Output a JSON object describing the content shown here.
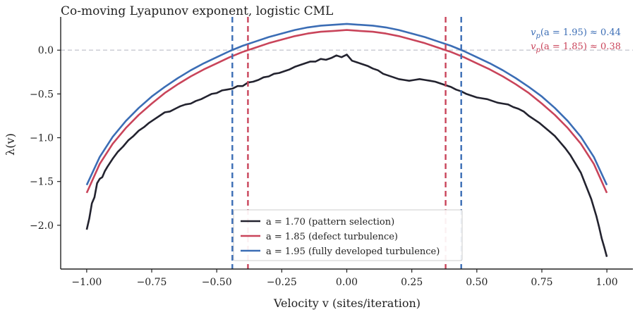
{
  "chart_data": {
    "type": "line",
    "title": "Co-moving Lyapunov exponent, logistic CML",
    "xlabel": "Velocity v (sites/iteration)",
    "ylabel": "λ(v)",
    "xlim": [
      -1.1,
      1.1
    ],
    "ylim": [
      -2.5,
      0.38
    ],
    "xticks": [
      -1.0,
      -0.75,
      -0.5,
      -0.25,
      0.0,
      0.25,
      0.5,
      0.75,
      1.0
    ],
    "xtick_labels": [
      "−1.00",
      "−0.75",
      "−0.50",
      "−0.25",
      "0.00",
      "0.25",
      "0.50",
      "0.75",
      "1.00"
    ],
    "yticks": [
      -2.0,
      -1.5,
      -1.0,
      -0.5,
      0.0
    ],
    "ytick_labels": [
      "−2.0",
      "−1.5",
      "−1.0",
      "−0.5",
      "0.0"
    ],
    "grid": false,
    "legend_position": "lower center",
    "reference_line": {
      "y": 0.0,
      "style": "dashed",
      "color": "#c7c9d1"
    },
    "vertical_markers": [
      {
        "x": -0.44,
        "color": "#3b6db5"
      },
      {
        "x": 0.44,
        "color": "#3b6db5"
      },
      {
        "x": -0.38,
        "color": "#c9445a"
      },
      {
        "x": 0.38,
        "color": "#c9445a"
      }
    ],
    "annotations": [
      {
        "text_main": "v",
        "text_sub": "p",
        "text_rest": "(a = 1.95) ≈ 0.44",
        "color": "#3b6db5"
      },
      {
        "text_main": "v",
        "text_sub": "p",
        "text_rest": "(a = 1.85) ≈ 0.38",
        "color": "#c9445a"
      }
    ],
    "series": [
      {
        "name": "a = 1.70 (pattern selection)",
        "color": "#23232f",
        "x": [
          -1.0,
          -0.99,
          -0.98,
          -0.97,
          -0.96,
          -0.95,
          -0.94,
          -0.93,
          -0.92,
          -0.9,
          -0.88,
          -0.86,
          -0.84,
          -0.82,
          -0.8,
          -0.78,
          -0.76,
          -0.74,
          -0.72,
          -0.7,
          -0.68,
          -0.66,
          -0.64,
          -0.62,
          -0.6,
          -0.58,
          -0.56,
          -0.54,
          -0.52,
          -0.5,
          -0.48,
          -0.46,
          -0.44,
          -0.42,
          -0.4,
          -0.38,
          -0.36,
          -0.34,
          -0.32,
          -0.3,
          -0.28,
          -0.26,
          -0.24,
          -0.22,
          -0.2,
          -0.18,
          -0.16,
          -0.14,
          -0.12,
          -0.1,
          -0.08,
          -0.06,
          -0.04,
          -0.02,
          0.0,
          0.02,
          0.04,
          0.06,
          0.08,
          0.1,
          0.12,
          0.14,
          0.16,
          0.18,
          0.2,
          0.22,
          0.24,
          0.26,
          0.28,
          0.3,
          0.32,
          0.34,
          0.36,
          0.38,
          0.4,
          0.42,
          0.44,
          0.46,
          0.48,
          0.5,
          0.52,
          0.54,
          0.56,
          0.58,
          0.6,
          0.62,
          0.64,
          0.66,
          0.68,
          0.7,
          0.72,
          0.74,
          0.76,
          0.78,
          0.8,
          0.82,
          0.84,
          0.86,
          0.88,
          0.9,
          0.92,
          0.94,
          0.96,
          0.97,
          0.98,
          0.99,
          1.0
        ],
        "y": [
          -2.05,
          -1.92,
          -1.75,
          -1.68,
          -1.52,
          -1.47,
          -1.45,
          -1.38,
          -1.33,
          -1.24,
          -1.16,
          -1.1,
          -1.03,
          -0.98,
          -0.92,
          -0.88,
          -0.83,
          -0.79,
          -0.75,
          -0.71,
          -0.7,
          -0.67,
          -0.64,
          -0.62,
          -0.61,
          -0.58,
          -0.56,
          -0.53,
          -0.5,
          -0.49,
          -0.46,
          -0.45,
          -0.44,
          -0.41,
          -0.41,
          -0.37,
          -0.36,
          -0.34,
          -0.31,
          -0.3,
          -0.27,
          -0.26,
          -0.24,
          -0.22,
          -0.19,
          -0.17,
          -0.15,
          -0.13,
          -0.13,
          -0.1,
          -0.11,
          -0.09,
          -0.06,
          -0.08,
          -0.05,
          -0.12,
          -0.14,
          -0.16,
          -0.18,
          -0.21,
          -0.23,
          -0.27,
          -0.29,
          -0.31,
          -0.33,
          -0.34,
          -0.35,
          -0.34,
          -0.33,
          -0.34,
          -0.35,
          -0.36,
          -0.38,
          -0.4,
          -0.42,
          -0.45,
          -0.47,
          -0.5,
          -0.52,
          -0.54,
          -0.55,
          -0.56,
          -0.58,
          -0.6,
          -0.61,
          -0.62,
          -0.65,
          -0.67,
          -0.7,
          -0.75,
          -0.79,
          -0.83,
          -0.88,
          -0.93,
          -0.98,
          -1.05,
          -1.12,
          -1.2,
          -1.3,
          -1.4,
          -1.55,
          -1.7,
          -1.9,
          -2.02,
          -2.15,
          -2.25,
          -2.36
        ]
      },
      {
        "name": "a = 1.85 (defect turbulence)",
        "color": "#c9445a",
        "x": [
          -1.0,
          -0.95,
          -0.9,
          -0.85,
          -0.8,
          -0.75,
          -0.7,
          -0.65,
          -0.6,
          -0.55,
          -0.5,
          -0.45,
          -0.4,
          -0.35,
          -0.3,
          -0.25,
          -0.2,
          -0.15,
          -0.1,
          -0.05,
          0.0,
          0.05,
          0.1,
          0.15,
          0.2,
          0.25,
          0.3,
          0.35,
          0.4,
          0.45,
          0.5,
          0.55,
          0.6,
          0.65,
          0.7,
          0.75,
          0.8,
          0.85,
          0.9,
          0.95,
          1.0
        ],
        "y": [
          -1.63,
          -1.3,
          -1.07,
          -0.89,
          -0.74,
          -0.61,
          -0.49,
          -0.39,
          -0.3,
          -0.22,
          -0.15,
          -0.08,
          -0.02,
          0.03,
          0.08,
          0.12,
          0.16,
          0.19,
          0.21,
          0.22,
          0.23,
          0.22,
          0.21,
          0.19,
          0.16,
          0.12,
          0.08,
          0.03,
          -0.02,
          -0.08,
          -0.15,
          -0.22,
          -0.3,
          -0.39,
          -0.49,
          -0.61,
          -0.74,
          -0.89,
          -1.07,
          -1.3,
          -1.63
        ]
      },
      {
        "name": "a = 1.95 (fully developed turbulence)",
        "color": "#3b6db5",
        "x": [
          -1.0,
          -0.95,
          -0.9,
          -0.85,
          -0.8,
          -0.75,
          -0.7,
          -0.65,
          -0.6,
          -0.55,
          -0.5,
          -0.45,
          -0.4,
          -0.35,
          -0.3,
          -0.25,
          -0.2,
          -0.15,
          -0.1,
          -0.05,
          0.0,
          0.05,
          0.1,
          0.15,
          0.2,
          0.25,
          0.3,
          0.35,
          0.4,
          0.45,
          0.5,
          0.55,
          0.6,
          0.65,
          0.7,
          0.75,
          0.8,
          0.85,
          0.9,
          0.95,
          1.0
        ],
        "y": [
          -1.54,
          -1.22,
          -0.99,
          -0.81,
          -0.66,
          -0.53,
          -0.42,
          -0.32,
          -0.23,
          -0.15,
          -0.08,
          -0.01,
          0.05,
          0.1,
          0.15,
          0.19,
          0.23,
          0.26,
          0.28,
          0.29,
          0.3,
          0.29,
          0.28,
          0.26,
          0.23,
          0.19,
          0.15,
          0.1,
          0.05,
          -0.01,
          -0.08,
          -0.15,
          -0.23,
          -0.32,
          -0.42,
          -0.53,
          -0.66,
          -0.81,
          -0.99,
          -1.22,
          -1.54
        ]
      }
    ]
  }
}
